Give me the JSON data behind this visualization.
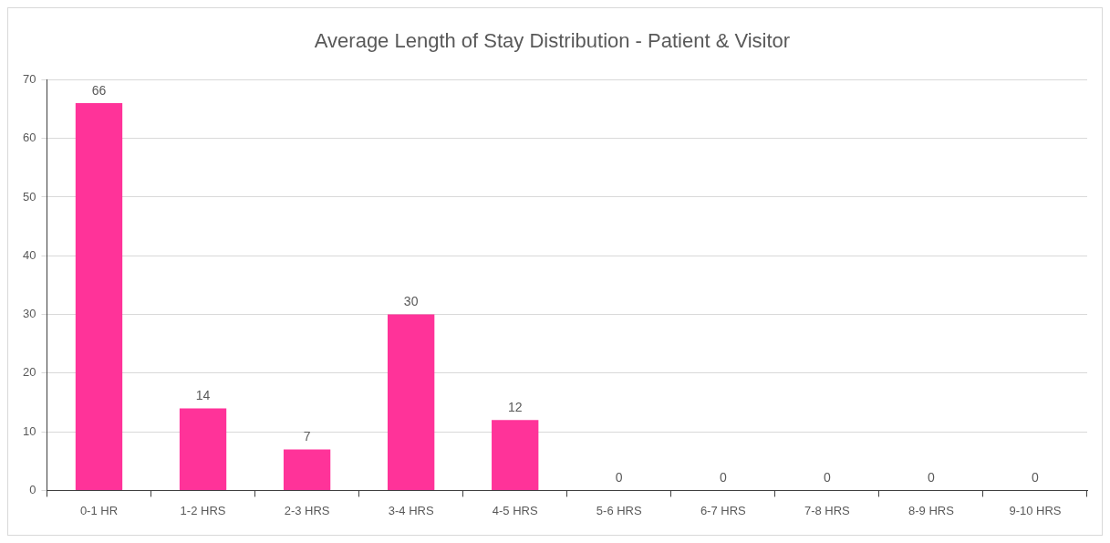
{
  "chart_data": {
    "type": "bar",
    "title": "Average Length of Stay Distribution - Patient & Visitor",
    "categories": [
      "0-1 HR",
      "1-2 HRS",
      "2-3 HRS",
      "3-4 HRS",
      "4-5 HRS",
      "5-6 HRS",
      "6-7 HRS",
      "7-8 HRS",
      "8-9 HRS",
      "9-10 HRS"
    ],
    "values": [
      66,
      14,
      7,
      30,
      12,
      0,
      0,
      0,
      0,
      0
    ],
    "color": "#ff3399",
    "ylim": [
      0,
      70
    ],
    "yticks": [
      0,
      10,
      20,
      30,
      40,
      50,
      60,
      70
    ],
    "grid": "y",
    "legend": false,
    "data_labels": true
  }
}
